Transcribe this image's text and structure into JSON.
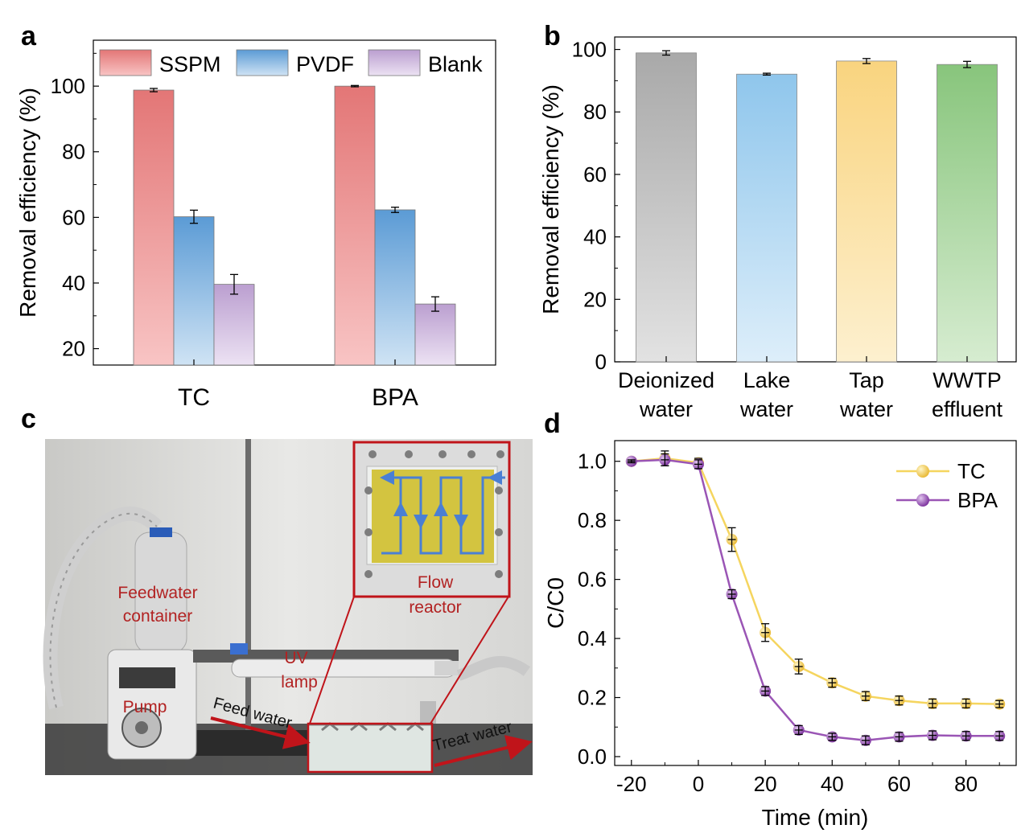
{
  "panel_labels": [
    "a",
    "b",
    "c",
    "d"
  ],
  "colors": {
    "red": "#e37676",
    "red_light": "#f8c4c4",
    "blue": "#5b9bd5",
    "blue_light": "#cfe3f4",
    "purple": "#bb9fd0",
    "purple_light": "#ece2f3",
    "gray": "#a9a9a9",
    "gray_light": "#e2e2e2",
    "lake": "#8fc6ec",
    "lake_light": "#ddeefa",
    "tap": "#f9d47f",
    "tap_light": "#fdf0cf",
    "green": "#88c57c",
    "green_light": "#d6ecd0",
    "tc_line": "#f5d55f",
    "tc_marker": "#f2cc4c",
    "bpa_line": "#9a55b5",
    "bpa_marker": "#8e44ad",
    "annotation": "#b22222",
    "arrow": "#4a7fd4"
  },
  "chart_data": [
    {
      "panel": "a",
      "type": "bar",
      "categories": [
        "TC",
        "BPA"
      ],
      "series": [
        {
          "name": "SSPM",
          "values": [
            98.8,
            100.0
          ],
          "errors": [
            0.5,
            0.2
          ]
        },
        {
          "name": "PVDF",
          "values": [
            60.2,
            62.3
          ],
          "errors": [
            2.0,
            0.8
          ]
        },
        {
          "name": "Blank",
          "values": [
            39.6,
            33.6
          ],
          "errors": [
            3.0,
            2.2
          ]
        }
      ],
      "ylabel": "Removal efficiency (%)",
      "ylim": [
        15,
        114
      ],
      "yticks": [
        20,
        40,
        60,
        80,
        100
      ],
      "legend": "top"
    },
    {
      "panel": "b",
      "type": "bar",
      "categories": [
        "Deionized water",
        "Lake water",
        "Tap water",
        "WWTP effluent"
      ],
      "category_lines": [
        [
          "Deionized",
          "water"
        ],
        [
          "Lake",
          "water"
        ],
        [
          "Tap",
          "water"
        ],
        [
          "WWTP",
          "effluent"
        ]
      ],
      "values": [
        98.9,
        92.1,
        96.3,
        95.2
      ],
      "errors": [
        0.7,
        0.3,
        0.8,
        1.0
      ],
      "ylabel": "Removal efficiency (%)",
      "ylim": [
        0,
        104
      ],
      "yticks": [
        0,
        20,
        40,
        60,
        80,
        100
      ]
    },
    {
      "panel": "d",
      "type": "line",
      "x": [
        -20,
        -10,
        0,
        10,
        20,
        30,
        40,
        50,
        60,
        70,
        80,
        90
      ],
      "series": [
        {
          "name": "TC",
          "values": [
            1.0,
            1.01,
            0.995,
            0.735,
            0.42,
            0.305,
            0.25,
            0.205,
            0.19,
            0.18,
            0.18,
            0.178
          ],
          "errors": [
            0.005,
            0.025,
            0.015,
            0.04,
            0.03,
            0.025,
            0.015,
            0.015,
            0.015,
            0.015,
            0.015,
            0.012
          ]
        },
        {
          "name": "BPA",
          "values": [
            1.0,
            1.005,
            0.99,
            0.55,
            0.222,
            0.09,
            0.067,
            0.055,
            0.067,
            0.072,
            0.07,
            0.07
          ],
          "errors": [
            0.005,
            0.02,
            0.015,
            0.015,
            0.015,
            0.015,
            0.012,
            0.015,
            0.015,
            0.015,
            0.015,
            0.015
          ]
        }
      ],
      "xlabel": "Time (min)",
      "ylabel": "C/C0",
      "xlim": [
        -25,
        95
      ],
      "ylim": [
        -0.03,
        1.07
      ],
      "xticks": [
        -20,
        0,
        20,
        40,
        60,
        80
      ],
      "yticks": [
        0.0,
        0.2,
        0.4,
        0.6,
        0.8,
        1.0
      ],
      "legend": "top-right"
    }
  ],
  "photo_c": {
    "labels": {
      "feedwater": [
        "Feedwater",
        "container"
      ],
      "uv": [
        "UV",
        "lamp"
      ],
      "pump": "Pump",
      "flow": [
        "Flow",
        "reactor"
      ],
      "feed_water": "Feed water",
      "treat_water": "Treat water"
    }
  }
}
